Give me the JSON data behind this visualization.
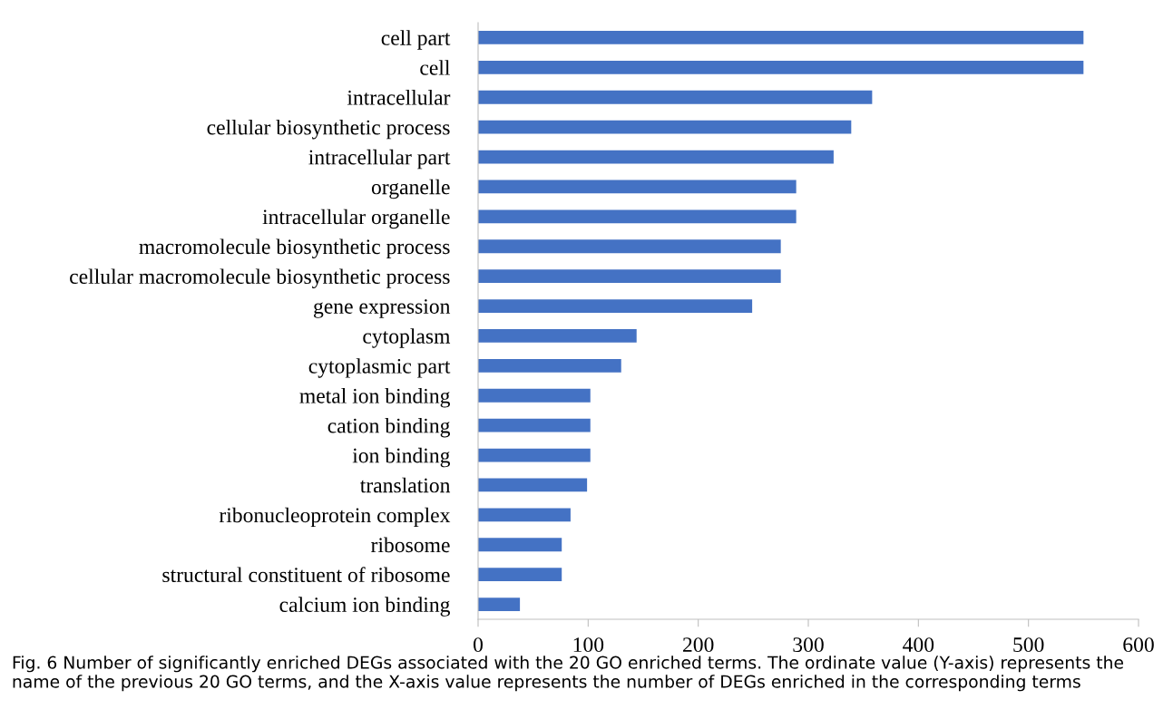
{
  "chart_data": {
    "type": "bar",
    "orientation": "horizontal",
    "categories": [
      "cell part",
      "cell",
      "intracellular",
      "cellular biosynthetic process",
      "intracellular part",
      "organelle",
      "intracellular organelle",
      "macromolecule biosynthetic process",
      "cellular macromolecule biosynthetic process",
      "gene expression",
      "cytoplasm",
      "cytoplasmic part",
      "metal ion binding",
      "cation binding",
      "ion binding",
      "translation",
      "ribonucleoprotein complex",
      "ribosome",
      "structural constituent of ribosome",
      "calcium ion binding"
    ],
    "values": [
      550,
      550,
      358,
      339,
      323,
      289,
      289,
      275,
      275,
      249,
      144,
      130,
      102,
      102,
      102,
      99,
      84,
      76,
      76,
      38
    ],
    "color": "#4472c4",
    "xlim": [
      0,
      600
    ],
    "xticks": [
      0,
      100,
      200,
      300,
      400,
      500,
      600
    ],
    "grid": false,
    "legend": false,
    "annotations": [
      "Fig. 6 Number of significantly enriched DEGs associated with the 20 GO enriched terms. The ordinate value (Y-axis) represents the name of the previous 20 GO terms, and the X-axis value represents the number of DEGs enriched in the corresponding terms"
    ]
  }
}
